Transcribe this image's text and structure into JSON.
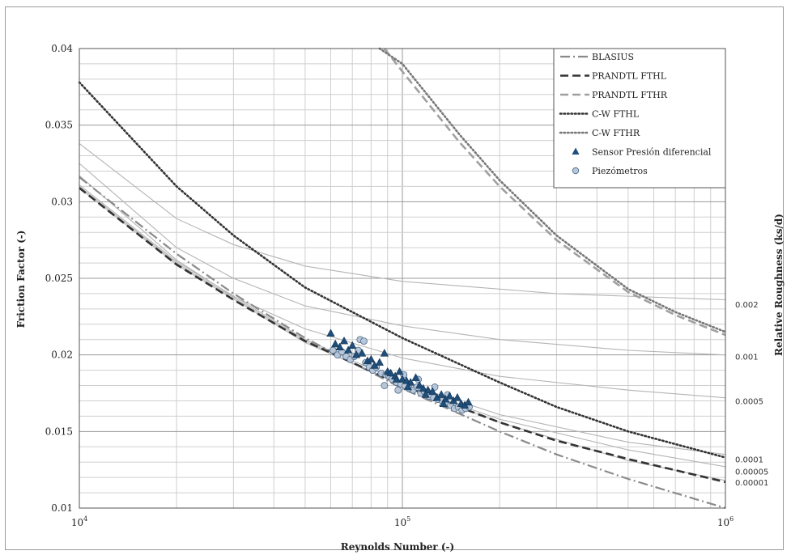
{
  "chart_data": {
    "type": "line",
    "title": "",
    "xlabel": "Reynolds Number (-)",
    "ylabel": "Friction Factor (-)",
    "y2label": "Relative Roughness (ks/d)",
    "xscale": "log",
    "xlim": [
      10000,
      1000000
    ],
    "ylim": [
      0.01,
      0.04
    ],
    "grid": true,
    "legend_position": "top-right",
    "xticks": [
      {
        "value": 10000,
        "base": "10",
        "exp": "4"
      },
      {
        "value": 100000,
        "base": "10",
        "exp": "5"
      },
      {
        "value": 1000000,
        "base": "10",
        "exp": "6"
      }
    ],
    "yticks": [
      {
        "value": 0.01,
        "label": "0.01"
      },
      {
        "value": 0.015,
        "label": "0.015"
      },
      {
        "value": 0.02,
        "label": "0.02"
      },
      {
        "value": 0.025,
        "label": "0.025"
      },
      {
        "value": 0.03,
        "label": "0.03"
      },
      {
        "value": 0.035,
        "label": "0.035"
      },
      {
        "value": 0.04,
        "label": "0.04"
      }
    ],
    "roughness_labels": [
      {
        "label": "0.002",
        "y": 0.0233
      },
      {
        "label": "0.001",
        "y": 0.0199
      },
      {
        "label": "0.0005",
        "y": 0.017
      },
      {
        "label": "0.0001",
        "y": 0.0132
      },
      {
        "label": "0.00005",
        "y": 0.0124
      },
      {
        "label": "0.00001",
        "y": 0.0117
      }
    ],
    "roughness_curves": [
      {
        "label": "0.002",
        "values": [
          [
            10000,
            0.0338
          ],
          [
            20000,
            0.0289
          ],
          [
            30000,
            0.0272
          ],
          [
            50000,
            0.0258
          ],
          [
            100000,
            0.0248
          ],
          [
            300000,
            0.024
          ],
          [
            1000000,
            0.0236
          ]
        ]
      },
      {
        "label": "0.001",
        "values": [
          [
            10000,
            0.0325
          ],
          [
            20000,
            0.027
          ],
          [
            30000,
            0.025
          ],
          [
            50000,
            0.0232
          ],
          [
            100000,
            0.0219
          ],
          [
            200000,
            0.021
          ],
          [
            500000,
            0.0203
          ],
          [
            1000000,
            0.02
          ]
        ]
      },
      {
        "label": "0.0005",
        "values": [
          [
            10000,
            0.0317
          ],
          [
            20000,
            0.0262
          ],
          [
            30000,
            0.0238
          ],
          [
            50000,
            0.0217
          ],
          [
            100000,
            0.0198
          ],
          [
            200000,
            0.0186
          ],
          [
            500000,
            0.0177
          ],
          [
            1000000,
            0.0172
          ]
        ]
      },
      {
        "label": "0.0001",
        "values": [
          [
            10000,
            0.0311
          ],
          [
            20000,
            0.0261
          ],
          [
            50000,
            0.021
          ],
          [
            100000,
            0.0182
          ],
          [
            200000,
            0.0161
          ],
          [
            500000,
            0.0143
          ],
          [
            1000000,
            0.0135
          ]
        ]
      },
      {
        "label": "0.00005",
        "values": [
          [
            10000,
            0.031
          ],
          [
            20000,
            0.026
          ],
          [
            50000,
            0.0209
          ],
          [
            100000,
            0.018
          ],
          [
            200000,
            0.0158
          ],
          [
            500000,
            0.0138
          ],
          [
            1000000,
            0.0127
          ]
        ]
      },
      {
        "label": "0.00001",
        "values": [
          [
            10000,
            0.0309
          ],
          [
            20000,
            0.0259
          ],
          [
            50000,
            0.0208
          ],
          [
            100000,
            0.018
          ],
          [
            200000,
            0.0156
          ],
          [
            500000,
            0.0131
          ],
          [
            1000000,
            0.0118
          ]
        ]
      }
    ],
    "series": [
      {
        "name": "BLASIUS",
        "style": "dashdot",
        "color": "#8a8a8a",
        "values": [
          [
            10000,
            0.0316
          ],
          [
            20000,
            0.0266
          ],
          [
            30000,
            0.024
          ],
          [
            50000,
            0.0211
          ],
          [
            100000,
            0.0178
          ],
          [
            200000,
            0.015
          ],
          [
            300000,
            0.0135
          ],
          [
            500000,
            0.0119
          ],
          [
            1000000,
            0.01
          ]
        ]
      },
      {
        "name": "PRANDTL FTHL",
        "style": "dash",
        "color": "#333333",
        "values": [
          [
            10000,
            0.0309
          ],
          [
            20000,
            0.0259
          ],
          [
            30000,
            0.0236
          ],
          [
            50000,
            0.0209
          ],
          [
            100000,
            0.018
          ],
          [
            200000,
            0.0156
          ],
          [
            300000,
            0.0144
          ],
          [
            500000,
            0.0132
          ],
          [
            1000000,
            0.0117
          ]
        ]
      },
      {
        "name": "PRANDTL FTHR",
        "style": "dash",
        "color": "#a0a0a0",
        "values": [
          [
            88000,
            0.04
          ],
          [
            100000,
            0.0385
          ],
          [
            150000,
            0.0339
          ],
          [
            200000,
            0.031
          ],
          [
            300000,
            0.0275
          ],
          [
            500000,
            0.0241
          ],
          [
            700000,
            0.0226
          ],
          [
            1000000,
            0.0213
          ]
        ]
      },
      {
        "name": "C-W FTHL",
        "style": "dot",
        "color": "#333333",
        "values": [
          [
            10000,
            0.0378
          ],
          [
            20000,
            0.031
          ],
          [
            30000,
            0.0278
          ],
          [
            50000,
            0.0244
          ],
          [
            100000,
            0.0211
          ],
          [
            200000,
            0.0182
          ],
          [
            300000,
            0.0166
          ],
          [
            500000,
            0.015
          ],
          [
            1000000,
            0.0133
          ]
        ]
      },
      {
        "name": "C-W FTHR",
        "style": "dot",
        "color": "#777777",
        "values": [
          [
            85000,
            0.04
          ],
          [
            100000,
            0.039
          ],
          [
            150000,
            0.0344
          ],
          [
            200000,
            0.0314
          ],
          [
            300000,
            0.0278
          ],
          [
            500000,
            0.0243
          ],
          [
            700000,
            0.0228
          ],
          [
            1000000,
            0.0215
          ]
        ]
      },
      {
        "name": "Sensor Presión diferencial",
        "style": "triangle",
        "color": "#1f4e79",
        "points": [
          [
            60000,
            0.0214
          ],
          [
            62000,
            0.0207
          ],
          [
            64000,
            0.0205
          ],
          [
            66000,
            0.0209
          ],
          [
            68000,
            0.0203
          ],
          [
            70000,
            0.0206
          ],
          [
            72000,
            0.02
          ],
          [
            75000,
            0.0201
          ],
          [
            78000,
            0.0196
          ],
          [
            80000,
            0.0197
          ],
          [
            82000,
            0.0193
          ],
          [
            85000,
            0.0195
          ],
          [
            88000,
            0.0201
          ],
          [
            90000,
            0.0189
          ],
          [
            92000,
            0.0188
          ],
          [
            95000,
            0.0186
          ],
          [
            98000,
            0.0189
          ],
          [
            100000,
            0.0184
          ],
          [
            103000,
            0.0183
          ],
          [
            106000,
            0.0182
          ],
          [
            110000,
            0.0185
          ],
          [
            113000,
            0.018
          ],
          [
            116000,
            0.0178
          ],
          [
            120000,
            0.0177
          ],
          [
            124000,
            0.0176
          ],
          [
            128000,
            0.0172
          ],
          [
            132000,
            0.0174
          ],
          [
            136000,
            0.0171
          ],
          [
            140000,
            0.0173
          ],
          [
            144000,
            0.017
          ],
          [
            148000,
            0.0172
          ],
          [
            152000,
            0.0168
          ],
          [
            156000,
            0.0167
          ],
          [
            160000,
            0.0169
          ],
          [
            96000,
            0.0184
          ],
          [
            104000,
            0.0179
          ],
          [
            118000,
            0.0174
          ],
          [
            134000,
            0.0168
          ]
        ]
      },
      {
        "name": "Piezómetros",
        "style": "circle",
        "color": "#b8c6d8",
        "points": [
          [
            61000,
            0.0203
          ],
          [
            63000,
            0.02
          ],
          [
            65000,
            0.0202
          ],
          [
            67000,
            0.0199
          ],
          [
            69000,
            0.0197
          ],
          [
            71000,
            0.0199
          ],
          [
            73000,
            0.0203
          ],
          [
            74000,
            0.021
          ],
          [
            76000,
            0.0209
          ],
          [
            77000,
            0.0195
          ],
          [
            79000,
            0.0192
          ],
          [
            81000,
            0.019
          ],
          [
            83000,
            0.0192
          ],
          [
            86000,
            0.0188
          ],
          [
            89000,
            0.0187
          ],
          [
            91000,
            0.0186
          ],
          [
            93000,
            0.0184
          ],
          [
            96000,
            0.0182
          ],
          [
            99000,
            0.0181
          ],
          [
            101000,
            0.0187
          ],
          [
            102000,
            0.018
          ],
          [
            105000,
            0.0178
          ],
          [
            108000,
            0.0177
          ],
          [
            111000,
            0.0179
          ],
          [
            114000,
            0.0175
          ],
          [
            117000,
            0.0176
          ],
          [
            121000,
            0.0173
          ],
          [
            125000,
            0.0172
          ],
          [
            129000,
            0.0171
          ],
          [
            133000,
            0.017
          ],
          [
            137000,
            0.0168
          ],
          [
            141000,
            0.0167
          ],
          [
            145000,
            0.0165
          ],
          [
            149000,
            0.0166
          ],
          [
            153000,
            0.0164
          ],
          [
            157000,
            0.0165
          ],
          [
            161000,
            0.0166
          ],
          [
            112000,
            0.0184
          ],
          [
            126000,
            0.0179
          ],
          [
            138000,
            0.0174
          ],
          [
            88000,
            0.018
          ],
          [
            97000,
            0.0177
          ]
        ]
      }
    ]
  }
}
